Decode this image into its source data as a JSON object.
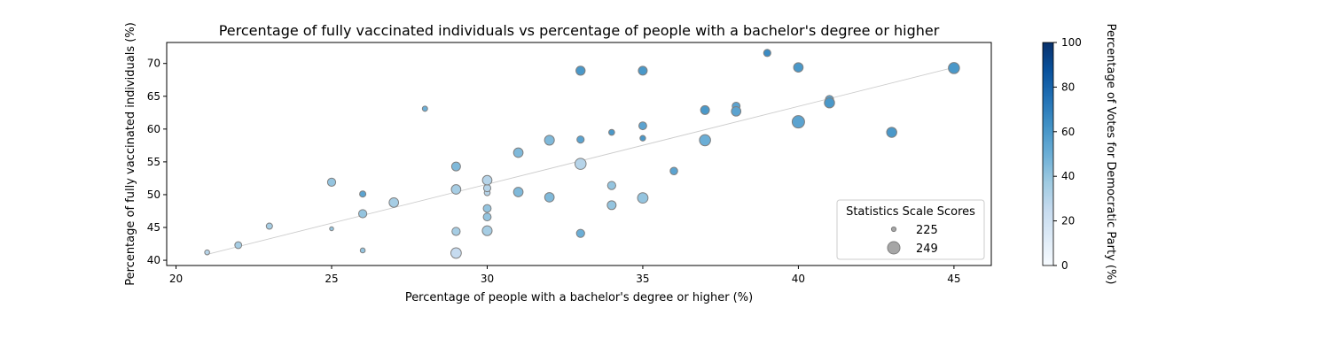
{
  "chart_data": {
    "type": "scatter",
    "title": "Percentage of fully vaccinated individuals vs percentage of people with a bachelor's degree or higher",
    "xlabel": "Percentage of people with a bachelor's degree or higher (%)",
    "ylabel": "Percentage of fully vaccinated individuals (%)",
    "xlim": [
      19.7,
      46.2
    ],
    "ylim": [
      39.2,
      73.2
    ],
    "xticks": [
      "20",
      "25",
      "30",
      "35",
      "40",
      "45"
    ],
    "yticks": [
      "40",
      "45",
      "50",
      "55",
      "60",
      "65",
      "70"
    ],
    "trendline": {
      "x": [
        21,
        45
      ],
      "y": [
        40.9,
        69.4
      ],
      "color": "#cccccc"
    },
    "colorbar": {
      "label": "Percentage of Votes for Democratic Party (%)",
      "range": [
        0,
        100
      ],
      "ticks": [
        "0",
        "20",
        "40",
        "60",
        "80",
        "100"
      ],
      "colormap": "Blues"
    },
    "size_legend": {
      "title": "Statistics Scale Scores",
      "entries": [
        {
          "label": "225",
          "value": 225
        },
        {
          "label": "249",
          "value": 249
        }
      ]
    },
    "points": [
      {
        "x": 21,
        "y": 41.2,
        "score": 226,
        "dem": 30
      },
      {
        "x": 22,
        "y": 42.3,
        "score": 232,
        "dem": 35
      },
      {
        "x": 23,
        "y": 45.2,
        "score": 230,
        "dem": 35
      },
      {
        "x": 25,
        "y": 44.8,
        "score": 223,
        "dem": 40
      },
      {
        "x": 25,
        "y": 51.9,
        "score": 236,
        "dem": 40
      },
      {
        "x": 26,
        "y": 41.5,
        "score": 226,
        "dem": 40
      },
      {
        "x": 26,
        "y": 47.1,
        "score": 236,
        "dem": 40
      },
      {
        "x": 26,
        "y": 50.1,
        "score": 230,
        "dem": 55
      },
      {
        "x": 27,
        "y": 48.8,
        "score": 240,
        "dem": 35
      },
      {
        "x": 28,
        "y": 63.1,
        "score": 227,
        "dem": 50
      },
      {
        "x": 29,
        "y": 41.1,
        "score": 243,
        "dem": 25
      },
      {
        "x": 29,
        "y": 44.4,
        "score": 236,
        "dem": 35
      },
      {
        "x": 29,
        "y": 50.8,
        "score": 240,
        "dem": 35
      },
      {
        "x": 29,
        "y": 54.3,
        "score": 238,
        "dem": 45
      },
      {
        "x": 30,
        "y": 44.5,
        "score": 241,
        "dem": 35
      },
      {
        "x": 30,
        "y": 46.6,
        "score": 235,
        "dem": 40
      },
      {
        "x": 30,
        "y": 47.9,
        "score": 235,
        "dem": 40
      },
      {
        "x": 30,
        "y": 50.3,
        "score": 229,
        "dem": 30
      },
      {
        "x": 30,
        "y": 51.0,
        "score": 233,
        "dem": 30
      },
      {
        "x": 30,
        "y": 52.2,
        "score": 240,
        "dem": 30
      },
      {
        "x": 31,
        "y": 50.4,
        "score": 240,
        "dem": 45
      },
      {
        "x": 31,
        "y": 56.4,
        "score": 240,
        "dem": 45
      },
      {
        "x": 32,
        "y": 49.6,
        "score": 240,
        "dem": 45
      },
      {
        "x": 32,
        "y": 58.3,
        "score": 241,
        "dem": 45
      },
      {
        "x": 33,
        "y": 44.1,
        "score": 236,
        "dem": 50
      },
      {
        "x": 33,
        "y": 54.7,
        "score": 245,
        "dem": 30
      },
      {
        "x": 33,
        "y": 58.4,
        "score": 233,
        "dem": 55
      },
      {
        "x": 33,
        "y": 68.9,
        "score": 239,
        "dem": 60
      },
      {
        "x": 34,
        "y": 48.4,
        "score": 238,
        "dem": 40
      },
      {
        "x": 34,
        "y": 51.4,
        "score": 236,
        "dem": 40
      },
      {
        "x": 34,
        "y": 59.5,
        "score": 229,
        "dem": 60
      },
      {
        "x": 35,
        "y": 49.5,
        "score": 243,
        "dem": 40
      },
      {
        "x": 35,
        "y": 58.6,
        "score": 228,
        "dem": 60
      },
      {
        "x": 35,
        "y": 60.5,
        "score": 235,
        "dem": 55
      },
      {
        "x": 35,
        "y": 68.9,
        "score": 238,
        "dem": 60
      },
      {
        "x": 36,
        "y": 53.6,
        "score": 234,
        "dem": 55
      },
      {
        "x": 37,
        "y": 58.3,
        "score": 245,
        "dem": 50
      },
      {
        "x": 37,
        "y": 62.9,
        "score": 238,
        "dem": 60
      },
      {
        "x": 38,
        "y": 63.5,
        "score": 235,
        "dem": 55
      },
      {
        "x": 38,
        "y": 62.7,
        "score": 240,
        "dem": 55
      },
      {
        "x": 39,
        "y": 71.6,
        "score": 233,
        "dem": 65
      },
      {
        "x": 40,
        "y": 61.1,
        "score": 249,
        "dem": 55
      },
      {
        "x": 40,
        "y": 69.4,
        "score": 240,
        "dem": 60
      },
      {
        "x": 41,
        "y": 64.5,
        "score": 236,
        "dem": 55
      },
      {
        "x": 41,
        "y": 64.0,
        "score": 242,
        "dem": 60
      },
      {
        "x": 43,
        "y": 59.5,
        "score": 242,
        "dem": 60
      },
      {
        "x": 45,
        "y": 69.3,
        "score": 245,
        "dem": 60
      }
    ]
  }
}
